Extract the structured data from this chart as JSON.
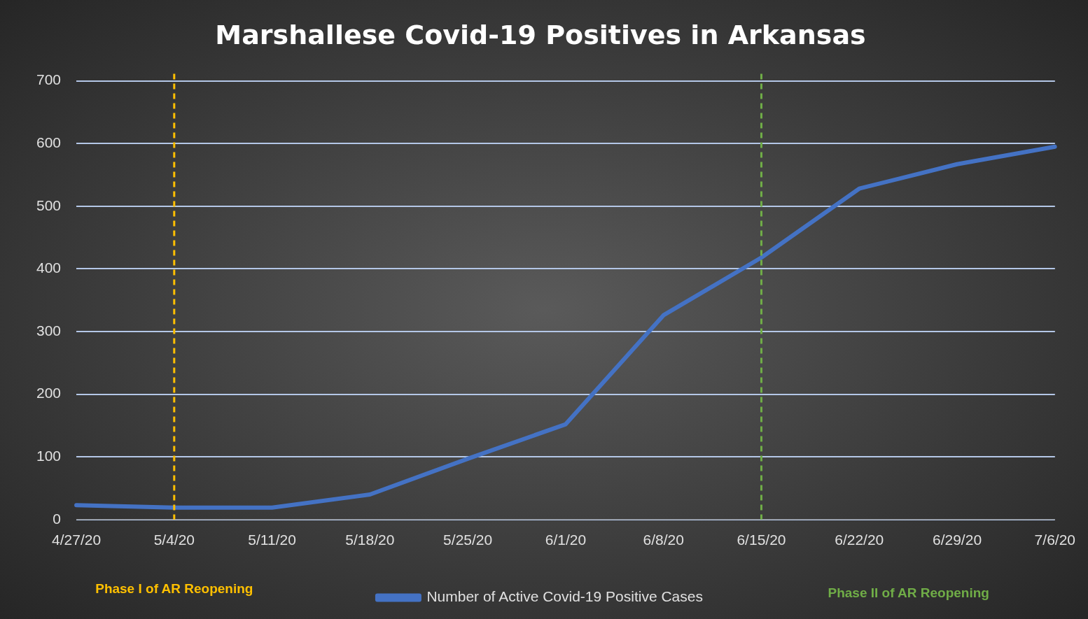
{
  "chart_data": {
    "type": "line",
    "title": "Marshallese Covid-19 Positives in Arkansas",
    "categories": [
      "4/27/20",
      "5/4/20",
      "5/11/20",
      "5/18/20",
      "5/25/20",
      "6/1/20",
      "6/8/20",
      "6/15/20",
      "6/22/20",
      "6/29/20",
      "7/6/20"
    ],
    "series": [
      {
        "name": "Number of Active Covid-19 Positive Cases",
        "color": "#4472c4",
        "values": [
          23,
          19,
          19,
          40,
          97,
          152,
          326,
          418,
          528,
          567,
          595
        ]
      }
    ],
    "ylim": [
      0,
      700
    ],
    "yticks": [
      0,
      100,
      200,
      300,
      400,
      500,
      600,
      700
    ],
    "grid": "y",
    "legend": "bottom",
    "marker": "none",
    "line_style": "solid",
    "ref_lines": [
      {
        "axis": "x",
        "value": "5/4/20",
        "label": "Phase I of AR Reopening",
        "color": "#ffc000",
        "line_style": "dashed"
      },
      {
        "axis": "x",
        "value": "6/15/20",
        "label": "Phase II of AR Reopening",
        "color": "#70ad47",
        "line_style": "dashed"
      }
    ]
  }
}
